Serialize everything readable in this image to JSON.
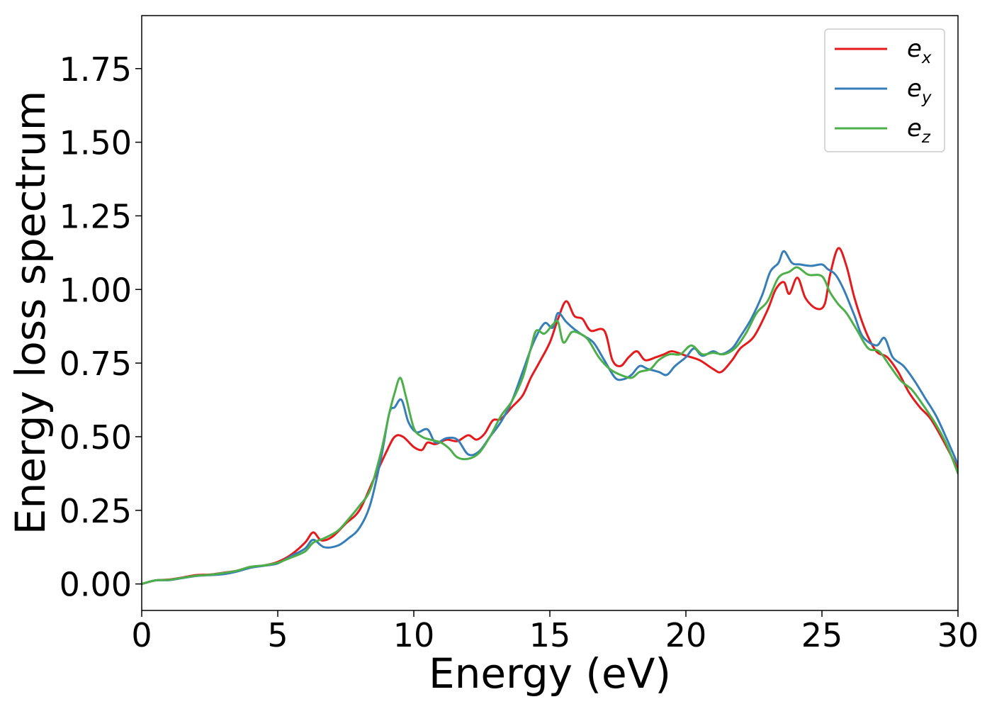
{
  "chart_data": {
    "type": "line",
    "xlabel": "Energy (eV)",
    "ylabel": "Energy loss spectrum",
    "xlim": [
      0,
      30
    ],
    "ylim": [
      -0.09,
      1.93
    ],
    "xticks": [
      0,
      5,
      10,
      15,
      20,
      25,
      30
    ],
    "xtick_labels": [
      "0",
      "5",
      "10",
      "15",
      "20",
      "25",
      "30"
    ],
    "yticks": [
      0.0,
      0.25,
      0.5,
      0.75,
      1.0,
      1.25,
      1.5,
      1.75
    ],
    "ytick_labels": [
      "0.00",
      "0.25",
      "0.50",
      "0.75",
      "1.00",
      "1.25",
      "1.50",
      "1.75"
    ],
    "grid": false,
    "legend_position": "top-right",
    "series": [
      {
        "name": "e_x",
        "legend_base": "e",
        "legend_sub": "x",
        "color": "#e41a1c",
        "points": [
          [
            0,
            0
          ],
          [
            0.5,
            0.012
          ],
          [
            1,
            0.015
          ],
          [
            1.5,
            0.022
          ],
          [
            2,
            0.03
          ],
          [
            2.5,
            0.032
          ],
          [
            3,
            0.038
          ],
          [
            3.5,
            0.045
          ],
          [
            4,
            0.058
          ],
          [
            4.5,
            0.063
          ],
          [
            5,
            0.075
          ],
          [
            5.5,
            0.1
          ],
          [
            6,
            0.14
          ],
          [
            6.3,
            0.175
          ],
          [
            6.6,
            0.148
          ],
          [
            7,
            0.16
          ],
          [
            7.5,
            0.205
          ],
          [
            8,
            0.25
          ],
          [
            8.5,
            0.35
          ],
          [
            9,
            0.45
          ],
          [
            9.3,
            0.5
          ],
          [
            9.6,
            0.5
          ],
          [
            10,
            0.465
          ],
          [
            10.3,
            0.455
          ],
          [
            10.5,
            0.48
          ],
          [
            10.8,
            0.475
          ],
          [
            11.2,
            0.49
          ],
          [
            11.6,
            0.485
          ],
          [
            12,
            0.505
          ],
          [
            12.3,
            0.49
          ],
          [
            12.6,
            0.51
          ],
          [
            12.9,
            0.555
          ],
          [
            13.2,
            0.56
          ],
          [
            13.6,
            0.6
          ],
          [
            14,
            0.64
          ],
          [
            14.3,
            0.7
          ],
          [
            14.6,
            0.75
          ],
          [
            15,
            0.82
          ],
          [
            15.3,
            0.9
          ],
          [
            15.6,
            0.96
          ],
          [
            15.9,
            0.91
          ],
          [
            16.2,
            0.9
          ],
          [
            16.5,
            0.86
          ],
          [
            17,
            0.86
          ],
          [
            17.3,
            0.76
          ],
          [
            17.6,
            0.74
          ],
          [
            17.9,
            0.77
          ],
          [
            18.2,
            0.79
          ],
          [
            18.5,
            0.76
          ],
          [
            18.9,
            0.77
          ],
          [
            19.2,
            0.78
          ],
          [
            19.5,
            0.79
          ],
          [
            20,
            0.775
          ],
          [
            20.5,
            0.76
          ],
          [
            21,
            0.73
          ],
          [
            21.3,
            0.72
          ],
          [
            21.7,
            0.76
          ],
          [
            22,
            0.8
          ],
          [
            22.5,
            0.84
          ],
          [
            23,
            0.93
          ],
          [
            23.3,
            1.0
          ],
          [
            23.6,
            1.025
          ],
          [
            23.8,
            0.985
          ],
          [
            24.1,
            1.04
          ],
          [
            24.4,
            0.97
          ],
          [
            24.8,
            0.935
          ],
          [
            25.1,
            0.95
          ],
          [
            25.3,
            1.05
          ],
          [
            25.6,
            1.14
          ],
          [
            25.9,
            1.08
          ],
          [
            26.2,
            0.97
          ],
          [
            26.6,
            0.86
          ],
          [
            27,
            0.79
          ],
          [
            27.4,
            0.77
          ],
          [
            27.8,
            0.72
          ],
          [
            28.2,
            0.65
          ],
          [
            28.6,
            0.6
          ],
          [
            29,
            0.56
          ],
          [
            29.5,
            0.48
          ],
          [
            30,
            0.39
          ]
        ]
      },
      {
        "name": "e_y",
        "legend_base": "e",
        "legend_sub": "y",
        "color": "#377eb8",
        "points": [
          [
            0,
            0
          ],
          [
            0.5,
            0.012
          ],
          [
            1,
            0.013
          ],
          [
            1.5,
            0.02
          ],
          [
            2,
            0.027
          ],
          [
            2.5,
            0.03
          ],
          [
            3,
            0.033
          ],
          [
            3.5,
            0.042
          ],
          [
            4,
            0.055
          ],
          [
            4.5,
            0.062
          ],
          [
            5,
            0.07
          ],
          [
            5.5,
            0.095
          ],
          [
            6,
            0.12
          ],
          [
            6.3,
            0.15
          ],
          [
            6.7,
            0.125
          ],
          [
            7.2,
            0.13
          ],
          [
            7.6,
            0.155
          ],
          [
            8,
            0.19
          ],
          [
            8.4,
            0.27
          ],
          [
            8.8,
            0.43
          ],
          [
            9.1,
            0.58
          ],
          [
            9.3,
            0.6
          ],
          [
            9.55,
            0.625
          ],
          [
            9.8,
            0.55
          ],
          [
            10.1,
            0.515
          ],
          [
            10.5,
            0.525
          ],
          [
            10.8,
            0.48
          ],
          [
            11.2,
            0.495
          ],
          [
            11.6,
            0.49
          ],
          [
            12,
            0.44
          ],
          [
            12.4,
            0.45
          ],
          [
            12.8,
            0.5
          ],
          [
            13.2,
            0.55
          ],
          [
            13.6,
            0.62
          ],
          [
            14,
            0.72
          ],
          [
            14.4,
            0.82
          ],
          [
            14.8,
            0.885
          ],
          [
            15.1,
            0.87
          ],
          [
            15.3,
            0.92
          ],
          [
            15.6,
            0.89
          ],
          [
            15.9,
            0.865
          ],
          [
            16.2,
            0.845
          ],
          [
            16.6,
            0.82
          ],
          [
            17,
            0.76
          ],
          [
            17.4,
            0.7
          ],
          [
            17.7,
            0.695
          ],
          [
            18,
            0.71
          ],
          [
            18.3,
            0.74
          ],
          [
            18.6,
            0.73
          ],
          [
            19,
            0.72
          ],
          [
            19.3,
            0.71
          ],
          [
            19.6,
            0.74
          ],
          [
            20,
            0.77
          ],
          [
            20.3,
            0.8
          ],
          [
            20.6,
            0.775
          ],
          [
            21,
            0.79
          ],
          [
            21.3,
            0.78
          ],
          [
            21.7,
            0.8
          ],
          [
            22,
            0.84
          ],
          [
            22.4,
            0.9
          ],
          [
            22.8,
            0.98
          ],
          [
            23.1,
            1.06
          ],
          [
            23.4,
            1.09
          ],
          [
            23.6,
            1.13
          ],
          [
            23.9,
            1.09
          ],
          [
            24.2,
            1.085
          ],
          [
            24.6,
            1.08
          ],
          [
            25,
            1.085
          ],
          [
            25.2,
            1.07
          ],
          [
            25.5,
            1.05
          ],
          [
            25.8,
            1.0
          ],
          [
            26.2,
            0.91
          ],
          [
            26.5,
            0.84
          ],
          [
            27,
            0.81
          ],
          [
            27.3,
            0.835
          ],
          [
            27.6,
            0.77
          ],
          [
            28,
            0.74
          ],
          [
            28.4,
            0.69
          ],
          [
            28.8,
            0.63
          ],
          [
            29.2,
            0.57
          ],
          [
            29.6,
            0.49
          ],
          [
            30,
            0.405
          ]
        ]
      },
      {
        "name": "e_z",
        "legend_base": "e",
        "legend_sub": "z",
        "color": "#4daf4a",
        "points": [
          [
            0,
            0
          ],
          [
            0.5,
            0.012
          ],
          [
            1,
            0.014
          ],
          [
            1.5,
            0.021
          ],
          [
            2,
            0.028
          ],
          [
            2.5,
            0.031
          ],
          [
            3,
            0.037
          ],
          [
            3.5,
            0.045
          ],
          [
            4,
            0.058
          ],
          [
            4.5,
            0.063
          ],
          [
            5,
            0.072
          ],
          [
            5.5,
            0.09
          ],
          [
            6,
            0.11
          ],
          [
            6.3,
            0.14
          ],
          [
            6.7,
            0.155
          ],
          [
            7.2,
            0.18
          ],
          [
            7.6,
            0.22
          ],
          [
            8,
            0.265
          ],
          [
            8.4,
            0.32
          ],
          [
            8.8,
            0.45
          ],
          [
            9.1,
            0.58
          ],
          [
            9.3,
            0.65
          ],
          [
            9.5,
            0.7
          ],
          [
            9.7,
            0.64
          ],
          [
            10,
            0.53
          ],
          [
            10.3,
            0.5
          ],
          [
            10.6,
            0.49
          ],
          [
            11,
            0.48
          ],
          [
            11.3,
            0.46
          ],
          [
            11.6,
            0.43
          ],
          [
            12,
            0.425
          ],
          [
            12.4,
            0.445
          ],
          [
            12.8,
            0.5
          ],
          [
            13.2,
            0.57
          ],
          [
            13.6,
            0.62
          ],
          [
            14,
            0.7
          ],
          [
            14.3,
            0.8
          ],
          [
            14.5,
            0.86
          ],
          [
            14.8,
            0.85
          ],
          [
            15.1,
            0.88
          ],
          [
            15.3,
            0.89
          ],
          [
            15.5,
            0.82
          ],
          [
            15.8,
            0.855
          ],
          [
            16.1,
            0.85
          ],
          [
            16.4,
            0.83
          ],
          [
            16.8,
            0.77
          ],
          [
            17.2,
            0.73
          ],
          [
            17.6,
            0.71
          ],
          [
            18,
            0.7
          ],
          [
            18.3,
            0.72
          ],
          [
            18.7,
            0.73
          ],
          [
            19,
            0.76
          ],
          [
            19.4,
            0.78
          ],
          [
            19.8,
            0.78
          ],
          [
            20.2,
            0.81
          ],
          [
            20.6,
            0.78
          ],
          [
            21,
            0.785
          ],
          [
            21.4,
            0.78
          ],
          [
            21.8,
            0.8
          ],
          [
            22.2,
            0.85
          ],
          [
            22.6,
            0.92
          ],
          [
            23,
            0.96
          ],
          [
            23.4,
            1.04
          ],
          [
            23.8,
            1.06
          ],
          [
            24.1,
            1.075
          ],
          [
            24.5,
            1.05
          ],
          [
            25,
            1.045
          ],
          [
            25.3,
            0.99
          ],
          [
            25.6,
            0.95
          ],
          [
            25.9,
            0.92
          ],
          [
            26.3,
            0.86
          ],
          [
            26.7,
            0.8
          ],
          [
            27.1,
            0.79
          ],
          [
            27.5,
            0.74
          ],
          [
            27.9,
            0.69
          ],
          [
            28.3,
            0.66
          ],
          [
            28.7,
            0.61
          ],
          [
            29.2,
            0.54
          ],
          [
            29.6,
            0.47
          ],
          [
            30,
            0.375
          ]
        ]
      }
    ]
  }
}
